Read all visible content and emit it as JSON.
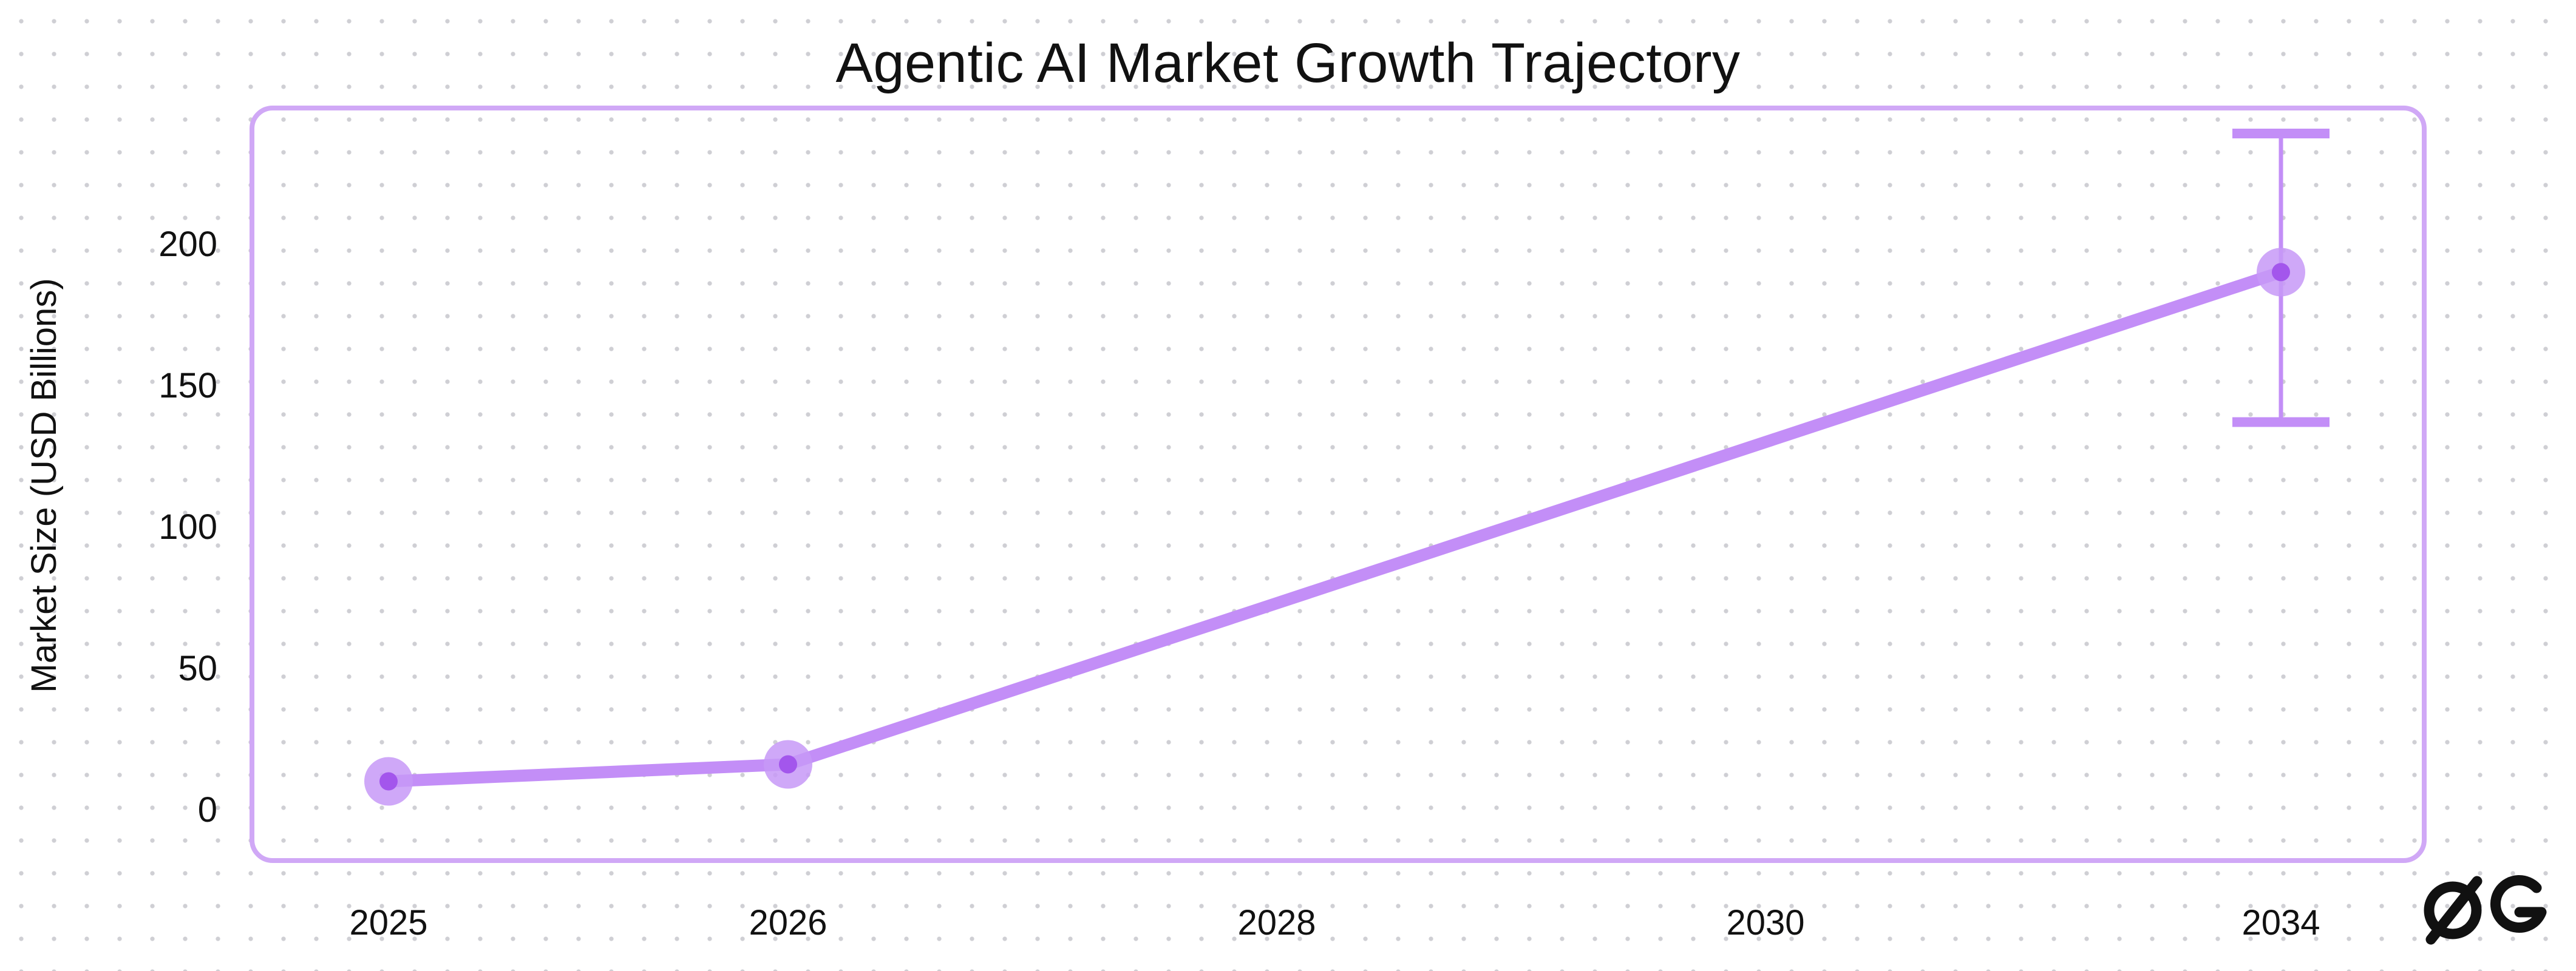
{
  "chart_data": {
    "type": "line",
    "title": "Agentic AI Market Growth Trajectory",
    "xlabel": "",
    "ylabel": "Market  Size (USD Billions)",
    "categories": [
      "2025",
      "2026",
      "2028",
      "2030",
      "2034"
    ],
    "series": [
      {
        "points": [
          {
            "x": "2025",
            "y": 10
          },
          {
            "x": "2026",
            "y": 16
          },
          {
            "x": "2034",
            "y": 190,
            "error_low": 137,
            "error_high": 239
          }
        ]
      }
    ],
    "yticks": [
      0,
      50,
      100,
      150,
      200
    ],
    "ylim": [
      -18,
      248
    ],
    "grid": false,
    "legend": "none",
    "colors": {
      "line": "#c38ef7",
      "marker_halo": "#c799f7",
      "marker_core": "#a356ec",
      "frame": "#d0a8f6",
      "text": "#111111"
    }
  },
  "branding": {
    "logo_icon": "gg-logo-icon"
  }
}
